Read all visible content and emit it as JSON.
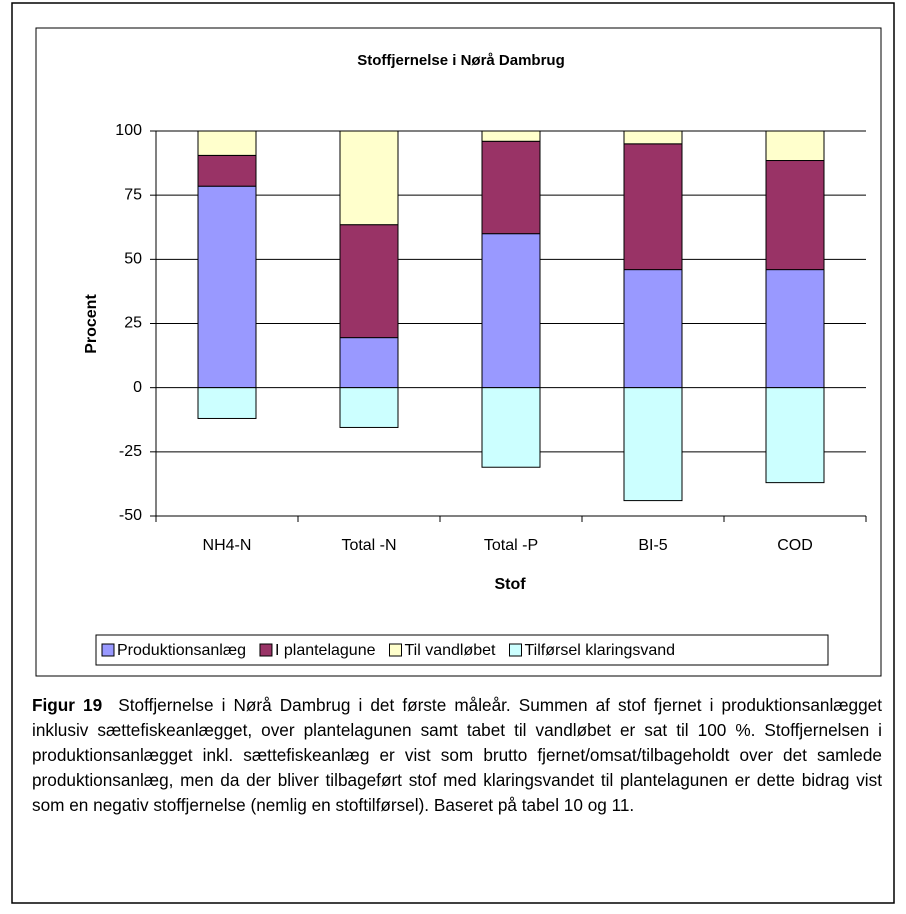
{
  "chart_data": {
    "type": "bar",
    "stacked": true,
    "title": "Stoffjernelse i Nørå Dambrug",
    "x_label": "Stof",
    "y_label": "Procent",
    "categories": [
      "NH4-N",
      "Total -N",
      "Total -P",
      "BI-5",
      "COD"
    ],
    "series": [
      {
        "name": "Produktionsanlæg",
        "color": "#9999ff",
        "values": [
          78.5,
          19.5,
          60,
          46,
          46
        ]
      },
      {
        "name": "I plantelagune",
        "color": "#993366",
        "values": [
          12,
          44,
          36,
          49,
          42.5
        ]
      },
      {
        "name": "Til vandløbet",
        "color": "#ffffcc",
        "values": [
          9.5,
          36.5,
          4,
          5,
          11.5
        ]
      },
      {
        "name": "Tilførsel klaringsvand",
        "color": "#ccffff",
        "values": [
          -12,
          -15.5,
          -31,
          -44,
          -37
        ]
      }
    ],
    "ylim": [
      -50,
      100
    ],
    "yticks": [
      -50,
      -25,
      0,
      25,
      50,
      75,
      100
    ],
    "grid": true,
    "legend": "bottom"
  },
  "caption": {
    "label": "Figur 19",
    "text": "Stoffjernelse i Nørå Dambrug i det første måleår. Summen af stof fjernet i produktionsanlægget inklusiv sættefiskeanlægget, over plantelagunen samt tabet til vandløbet er sat til 100 %. Stoffjernelsen i produktionsanlægget inkl. sættefiskeanlæg er vist som brutto fjernet/omsat/tilbageholdt over det samlede produktionsanlæg, men da der bliver tilbageført stof med klaringsvandet til plantelagunen er dette bidrag vist som en negativ stoffjernelse (nemlig en stoftilførsel). Baseret på tabel 10 og 11."
  }
}
